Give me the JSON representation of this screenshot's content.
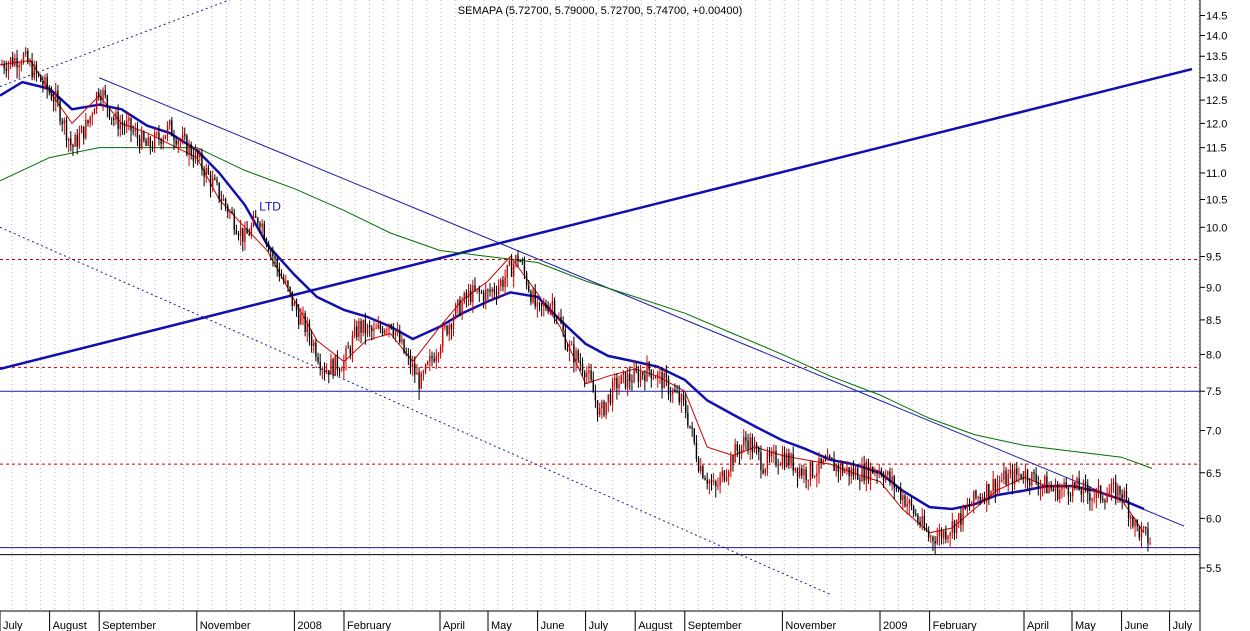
{
  "chart_data": {
    "type": "candlestick",
    "title": "SEMAPA (5.72700, 5.79000, 5.72700, 5.74700, +0.00400)",
    "y_axis": {
      "side": "right",
      "ylim": [
        5.1,
        14.9
      ],
      "scale": "log",
      "ticks": [
        "14.5",
        "14.0",
        "13.5",
        "13.0",
        "12.5",
        "12.0",
        "11.5",
        "11.0",
        "10.5",
        "10.0",
        "9.5",
        "9.0",
        "8.5",
        "8.0",
        "7.5",
        "7.0",
        "6.5",
        "6.0",
        "5.5"
      ]
    },
    "x_axis": {
      "tick_labels": [
        "July",
        "August",
        "September",
        "November",
        "2008",
        "February",
        "April",
        "May",
        "June",
        "July",
        "August",
        "September",
        "November",
        "2009",
        "February",
        "April",
        "May",
        "June",
        "July"
      ]
    },
    "annotations": [
      {
        "text": "LTD",
        "x": "2007-12-10",
        "y": 10.3
      }
    ],
    "horizontal_lines": [
      {
        "value": 9.45,
        "style": "dashed",
        "color": "#cc0000"
      },
      {
        "value": 7.82,
        "style": "dashed",
        "color": "#cc0000"
      },
      {
        "value": 7.5,
        "style": "solid",
        "color": "#1a1aa8"
      },
      {
        "value": 6.6,
        "style": "dashed",
        "color": "#cc0000"
      },
      {
        "value": 5.7,
        "style": "solid",
        "color": "#1a1aa8"
      },
      {
        "value": 5.63,
        "style": "solid",
        "color": "#000000"
      }
    ],
    "trend_lines": [
      {
        "name": "support-rising",
        "color": "#1010b0",
        "style": "solid",
        "points": [
          [
            "2007-07-01",
            7.8
          ],
          [
            "2009-07-15",
            13.2
          ]
        ]
      },
      {
        "name": "resistance-falling",
        "color": "#1a1aa8",
        "style": "solid",
        "points": [
          [
            "2007-09-01",
            13.0
          ],
          [
            "2009-07-10",
            5.92
          ]
        ]
      },
      {
        "name": "channel-upper",
        "color": "#1a1aa8",
        "style": "dotted",
        "points": [
          [
            "2007-07-01",
            12.8
          ],
          [
            "2007-12-10",
            15.2
          ]
        ]
      },
      {
        "name": "channel-lower",
        "color": "#1a1aa8",
        "style": "dotted",
        "points": [
          [
            "2007-07-01",
            10.0
          ],
          [
            "2008-12-01",
            5.25
          ]
        ]
      }
    ],
    "series": [
      {
        "type": "line",
        "color": "#1010b0",
        "points": [
          [
            "2007-07-01",
            12.6
          ],
          [
            "2007-07-15",
            12.9
          ],
          [
            "2007-08-01",
            12.75
          ],
          [
            "2007-08-15",
            12.3
          ],
          [
            "2007-09-01",
            12.4
          ],
          [
            "2007-09-15",
            12.3
          ],
          [
            "2007-10-01",
            11.95
          ],
          [
            "2007-10-15",
            11.8
          ],
          [
            "2007-11-01",
            11.45
          ],
          [
            "2007-11-15",
            11.0
          ],
          [
            "2007-12-01",
            10.4
          ],
          [
            "2007-12-15",
            9.7
          ],
          [
            "2008-01-01",
            9.2
          ],
          [
            "2008-01-15",
            8.85
          ],
          [
            "2008-02-01",
            8.65
          ],
          [
            "2008-02-15",
            8.55
          ],
          [
            "2008-03-01",
            8.4
          ],
          [
            "2008-03-15",
            8.22
          ],
          [
            "2008-04-01",
            8.4
          ],
          [
            "2008-04-15",
            8.6
          ],
          [
            "2008-05-01",
            8.78
          ],
          [
            "2008-05-15",
            8.92
          ],
          [
            "2008-06-01",
            8.85
          ],
          [
            "2008-06-15",
            8.5
          ],
          [
            "2008-07-01",
            8.15
          ],
          [
            "2008-07-15",
            7.98
          ],
          [
            "2008-08-01",
            7.9
          ],
          [
            "2008-08-15",
            7.83
          ],
          [
            "2008-09-01",
            7.65
          ],
          [
            "2008-09-15",
            7.38
          ],
          [
            "2008-10-01",
            7.2
          ],
          [
            "2008-10-15",
            7.05
          ],
          [
            "2008-11-01",
            6.88
          ],
          [
            "2008-11-15",
            6.78
          ],
          [
            "2008-12-01",
            6.65
          ],
          [
            "2008-12-15",
            6.6
          ],
          [
            "2009-01-01",
            6.5
          ],
          [
            "2009-01-15",
            6.3
          ],
          [
            "2009-02-01",
            6.12
          ],
          [
            "2009-02-15",
            6.1
          ],
          [
            "2009-03-01",
            6.15
          ],
          [
            "2009-03-15",
            6.25
          ],
          [
            "2009-04-01",
            6.3
          ],
          [
            "2009-04-15",
            6.35
          ],
          [
            "2009-05-01",
            6.35
          ],
          [
            "2009-05-15",
            6.3
          ],
          [
            "2009-06-01",
            6.2
          ],
          [
            "2009-06-15",
            6.1
          ]
        ]
      },
      {
        "type": "line",
        "color": "#007000",
        "points": [
          [
            "2007-07-01",
            10.85
          ],
          [
            "2007-08-01",
            11.3
          ],
          [
            "2007-09-01",
            11.5
          ],
          [
            "2007-10-01",
            11.5
          ],
          [
            "2007-11-01",
            11.5
          ],
          [
            "2007-12-01",
            11.05
          ],
          [
            "2008-01-01",
            10.7
          ],
          [
            "2008-02-01",
            10.3
          ],
          [
            "2008-03-01",
            9.9
          ],
          [
            "2008-04-01",
            9.6
          ],
          [
            "2008-05-01",
            9.5
          ],
          [
            "2008-06-01",
            9.4
          ],
          [
            "2008-07-01",
            9.1
          ],
          [
            "2008-08-01",
            8.85
          ],
          [
            "2008-09-01",
            8.6
          ],
          [
            "2008-10-01",
            8.3
          ],
          [
            "2008-11-01",
            8.0
          ],
          [
            "2008-12-01",
            7.7
          ],
          [
            "2009-01-01",
            7.45
          ],
          [
            "2009-02-01",
            7.15
          ],
          [
            "2009-03-01",
            6.95
          ],
          [
            "2009-04-01",
            6.82
          ],
          [
            "2009-05-01",
            6.75
          ],
          [
            "2009-06-01",
            6.68
          ],
          [
            "2009-06-20",
            6.55
          ]
        ]
      },
      {
        "type": "line",
        "color": "#cc0000",
        "points": [
          [
            "2007-07-01",
            13.3
          ],
          [
            "2007-07-20",
            13.4
          ],
          [
            "2007-08-01",
            12.7
          ],
          [
            "2007-08-15",
            12.0
          ],
          [
            "2007-09-01",
            12.6
          ],
          [
            "2007-09-15",
            12.0
          ],
          [
            "2007-10-01",
            11.8
          ],
          [
            "2007-11-01",
            11.3
          ],
          [
            "2007-11-15",
            10.5
          ],
          [
            "2007-12-01",
            10.0
          ],
          [
            "2007-12-15",
            9.6
          ],
          [
            "2008-01-01",
            8.8
          ],
          [
            "2008-01-15",
            8.2
          ],
          [
            "2008-02-01",
            7.9
          ],
          [
            "2008-02-15",
            8.2
          ],
          [
            "2008-03-01",
            8.3
          ],
          [
            "2008-03-15",
            7.9
          ],
          [
            "2008-04-01",
            8.4
          ],
          [
            "2008-04-15",
            8.8
          ],
          [
            "2008-05-01",
            9.1
          ],
          [
            "2008-05-15",
            9.5
          ],
          [
            "2008-06-01",
            8.9
          ],
          [
            "2008-06-15",
            8.4
          ],
          [
            "2008-07-01",
            7.6
          ],
          [
            "2008-07-15",
            7.7
          ],
          [
            "2008-08-01",
            7.8
          ],
          [
            "2008-08-15",
            7.7
          ],
          [
            "2008-09-01",
            7.5
          ],
          [
            "2008-09-15",
            6.8
          ],
          [
            "2008-10-01",
            6.7
          ],
          [
            "2008-10-15",
            6.8
          ],
          [
            "2008-11-01",
            6.7
          ],
          [
            "2008-11-15",
            6.65
          ],
          [
            "2008-12-01",
            6.6
          ],
          [
            "2008-12-15",
            6.5
          ],
          [
            "2009-01-01",
            6.4
          ],
          [
            "2009-01-15",
            6.1
          ],
          [
            "2009-02-01",
            5.85
          ],
          [
            "2009-02-15",
            5.9
          ],
          [
            "2009-03-01",
            6.1
          ],
          [
            "2009-03-15",
            6.3
          ],
          [
            "2009-04-01",
            6.45
          ],
          [
            "2009-04-15",
            6.35
          ],
          [
            "2009-05-01",
            6.35
          ],
          [
            "2009-05-15",
            6.3
          ],
          [
            "2009-06-01",
            6.2
          ],
          [
            "2009-06-15",
            5.85
          ]
        ]
      },
      {
        "type": "candlestick",
        "close_points": [
          [
            "2007-07-01",
            13.3
          ],
          [
            "2007-07-15",
            13.5
          ],
          [
            "2007-07-25",
            13.0
          ],
          [
            "2007-08-05",
            12.5
          ],
          [
            "2007-08-15",
            11.5
          ],
          [
            "2007-08-25",
            12.0
          ],
          [
            "2007-09-01",
            12.8
          ],
          [
            "2007-09-10",
            12.1
          ],
          [
            "2007-09-20",
            11.9
          ],
          [
            "2007-10-01",
            11.5
          ],
          [
            "2007-10-15",
            11.9
          ],
          [
            "2007-11-01",
            11.3
          ],
          [
            "2007-11-15",
            10.6
          ],
          [
            "2007-12-01",
            9.8
          ],
          [
            "2007-12-10",
            10.2
          ],
          [
            "2007-12-20",
            9.4
          ],
          [
            "2008-01-01",
            8.7
          ],
          [
            "2008-01-10",
            8.3
          ],
          [
            "2008-01-20",
            7.8
          ],
          [
            "2008-02-01",
            7.9
          ],
          [
            "2008-02-10",
            8.4
          ],
          [
            "2008-02-20",
            8.3
          ],
          [
            "2008-03-01",
            8.5
          ],
          [
            "2008-03-10",
            8.0
          ],
          [
            "2008-03-20",
            7.6
          ],
          [
            "2008-04-01",
            8.2
          ],
          [
            "2008-04-10",
            8.6
          ],
          [
            "2008-04-20",
            8.9
          ],
          [
            "2008-05-01",
            8.9
          ],
          [
            "2008-05-10",
            9.1
          ],
          [
            "2008-05-20",
            9.5
          ],
          [
            "2008-06-01",
            8.6
          ],
          [
            "2008-06-10",
            8.8
          ],
          [
            "2008-06-20",
            8.1
          ],
          [
            "2008-07-01",
            7.8
          ],
          [
            "2008-07-10",
            7.2
          ],
          [
            "2008-07-20",
            7.6
          ],
          [
            "2008-08-01",
            7.7
          ],
          [
            "2008-08-10",
            7.8
          ],
          [
            "2008-08-20",
            7.6
          ],
          [
            "2008-09-01",
            7.3
          ],
          [
            "2008-09-10",
            6.6
          ],
          [
            "2008-09-20",
            6.3
          ],
          [
            "2008-10-01",
            6.7
          ],
          [
            "2008-10-10",
            6.9
          ],
          [
            "2008-10-20",
            6.6
          ],
          [
            "2008-11-01",
            6.7
          ],
          [
            "2008-11-15",
            6.5
          ],
          [
            "2008-12-01",
            6.6
          ],
          [
            "2008-12-15",
            6.5
          ],
          [
            "2009-01-01",
            6.55
          ],
          [
            "2009-01-15",
            6.25
          ],
          [
            "2009-02-01",
            5.8
          ],
          [
            "2009-02-10",
            5.85
          ],
          [
            "2009-02-20",
            6.0
          ],
          [
            "2009-03-01",
            6.2
          ],
          [
            "2009-03-15",
            6.4
          ],
          [
            "2009-04-01",
            6.5
          ],
          [
            "2009-04-10",
            6.4
          ],
          [
            "2009-04-20",
            6.3
          ],
          [
            "2009-05-01",
            6.35
          ],
          [
            "2009-05-15",
            6.25
          ],
          [
            "2009-06-01",
            6.3
          ],
          [
            "2009-06-10",
            5.9
          ],
          [
            "2009-06-20",
            5.75
          ]
        ]
      }
    ],
    "grid": {
      "vertical": true,
      "horizontal": false
    },
    "legend": "none"
  },
  "colors": {
    "candle_up": "#cc0000",
    "candle_down": "#000000",
    "background": "#ffffff"
  }
}
